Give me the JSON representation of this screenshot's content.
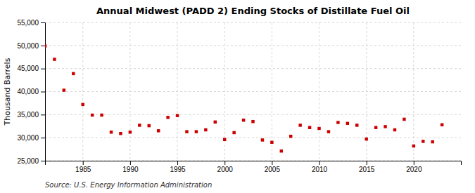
{
  "chart_data": {
    "type": "scatter",
    "title": "Annual Midwest (PADD 2) Ending Stocks of Distillate Fuel Oil",
    "ylabel": "Thousand Barrels",
    "source": "Source: U.S. Energy Information Administration",
    "color": "#cc0000",
    "marker": "square",
    "grid": true,
    "xlim": [
      1981,
      2025
    ],
    "xticks": [
      1985,
      1990,
      1995,
      2000,
      2005,
      2010,
      2015,
      2020
    ],
    "ylim": [
      25000,
      55000
    ],
    "yticks": [
      {
        "value": 25000,
        "label": "25,000"
      },
      {
        "value": 30000,
        "label": "30,000"
      },
      {
        "value": 35000,
        "label": "35,000"
      },
      {
        "value": 40000,
        "label": "40,000"
      },
      {
        "value": 45000,
        "label": "45,000"
      },
      {
        "value": 50000,
        "label": "50,000"
      },
      {
        "value": 55000,
        "label": "55,000"
      }
    ],
    "x": [
      1981,
      1982,
      1983,
      1984,
      1985,
      1986,
      1987,
      1988,
      1989,
      1990,
      1991,
      1992,
      1993,
      1994,
      1995,
      1996,
      1997,
      1998,
      1999,
      2000,
      2001,
      2002,
      2003,
      2004,
      2005,
      2006,
      2007,
      2008,
      2009,
      2010,
      2011,
      2012,
      2013,
      2014,
      2015,
      2016,
      2017,
      2018,
      2019,
      2020,
      2021,
      2022,
      2023
    ],
    "values": [
      49900,
      47000,
      40300,
      43900,
      37200,
      34900,
      34900,
      31200,
      30900,
      31200,
      32700,
      32600,
      31500,
      34400,
      34800,
      31300,
      31300,
      31700,
      33400,
      29600,
      31100,
      33800,
      33500,
      29500,
      29000,
      27100,
      30300,
      32700,
      32200,
      32000,
      31300,
      33300,
      33100,
      32700,
      29700,
      32200,
      32400,
      31700,
      34000,
      28200,
      29200,
      29100,
      32800
    ]
  }
}
